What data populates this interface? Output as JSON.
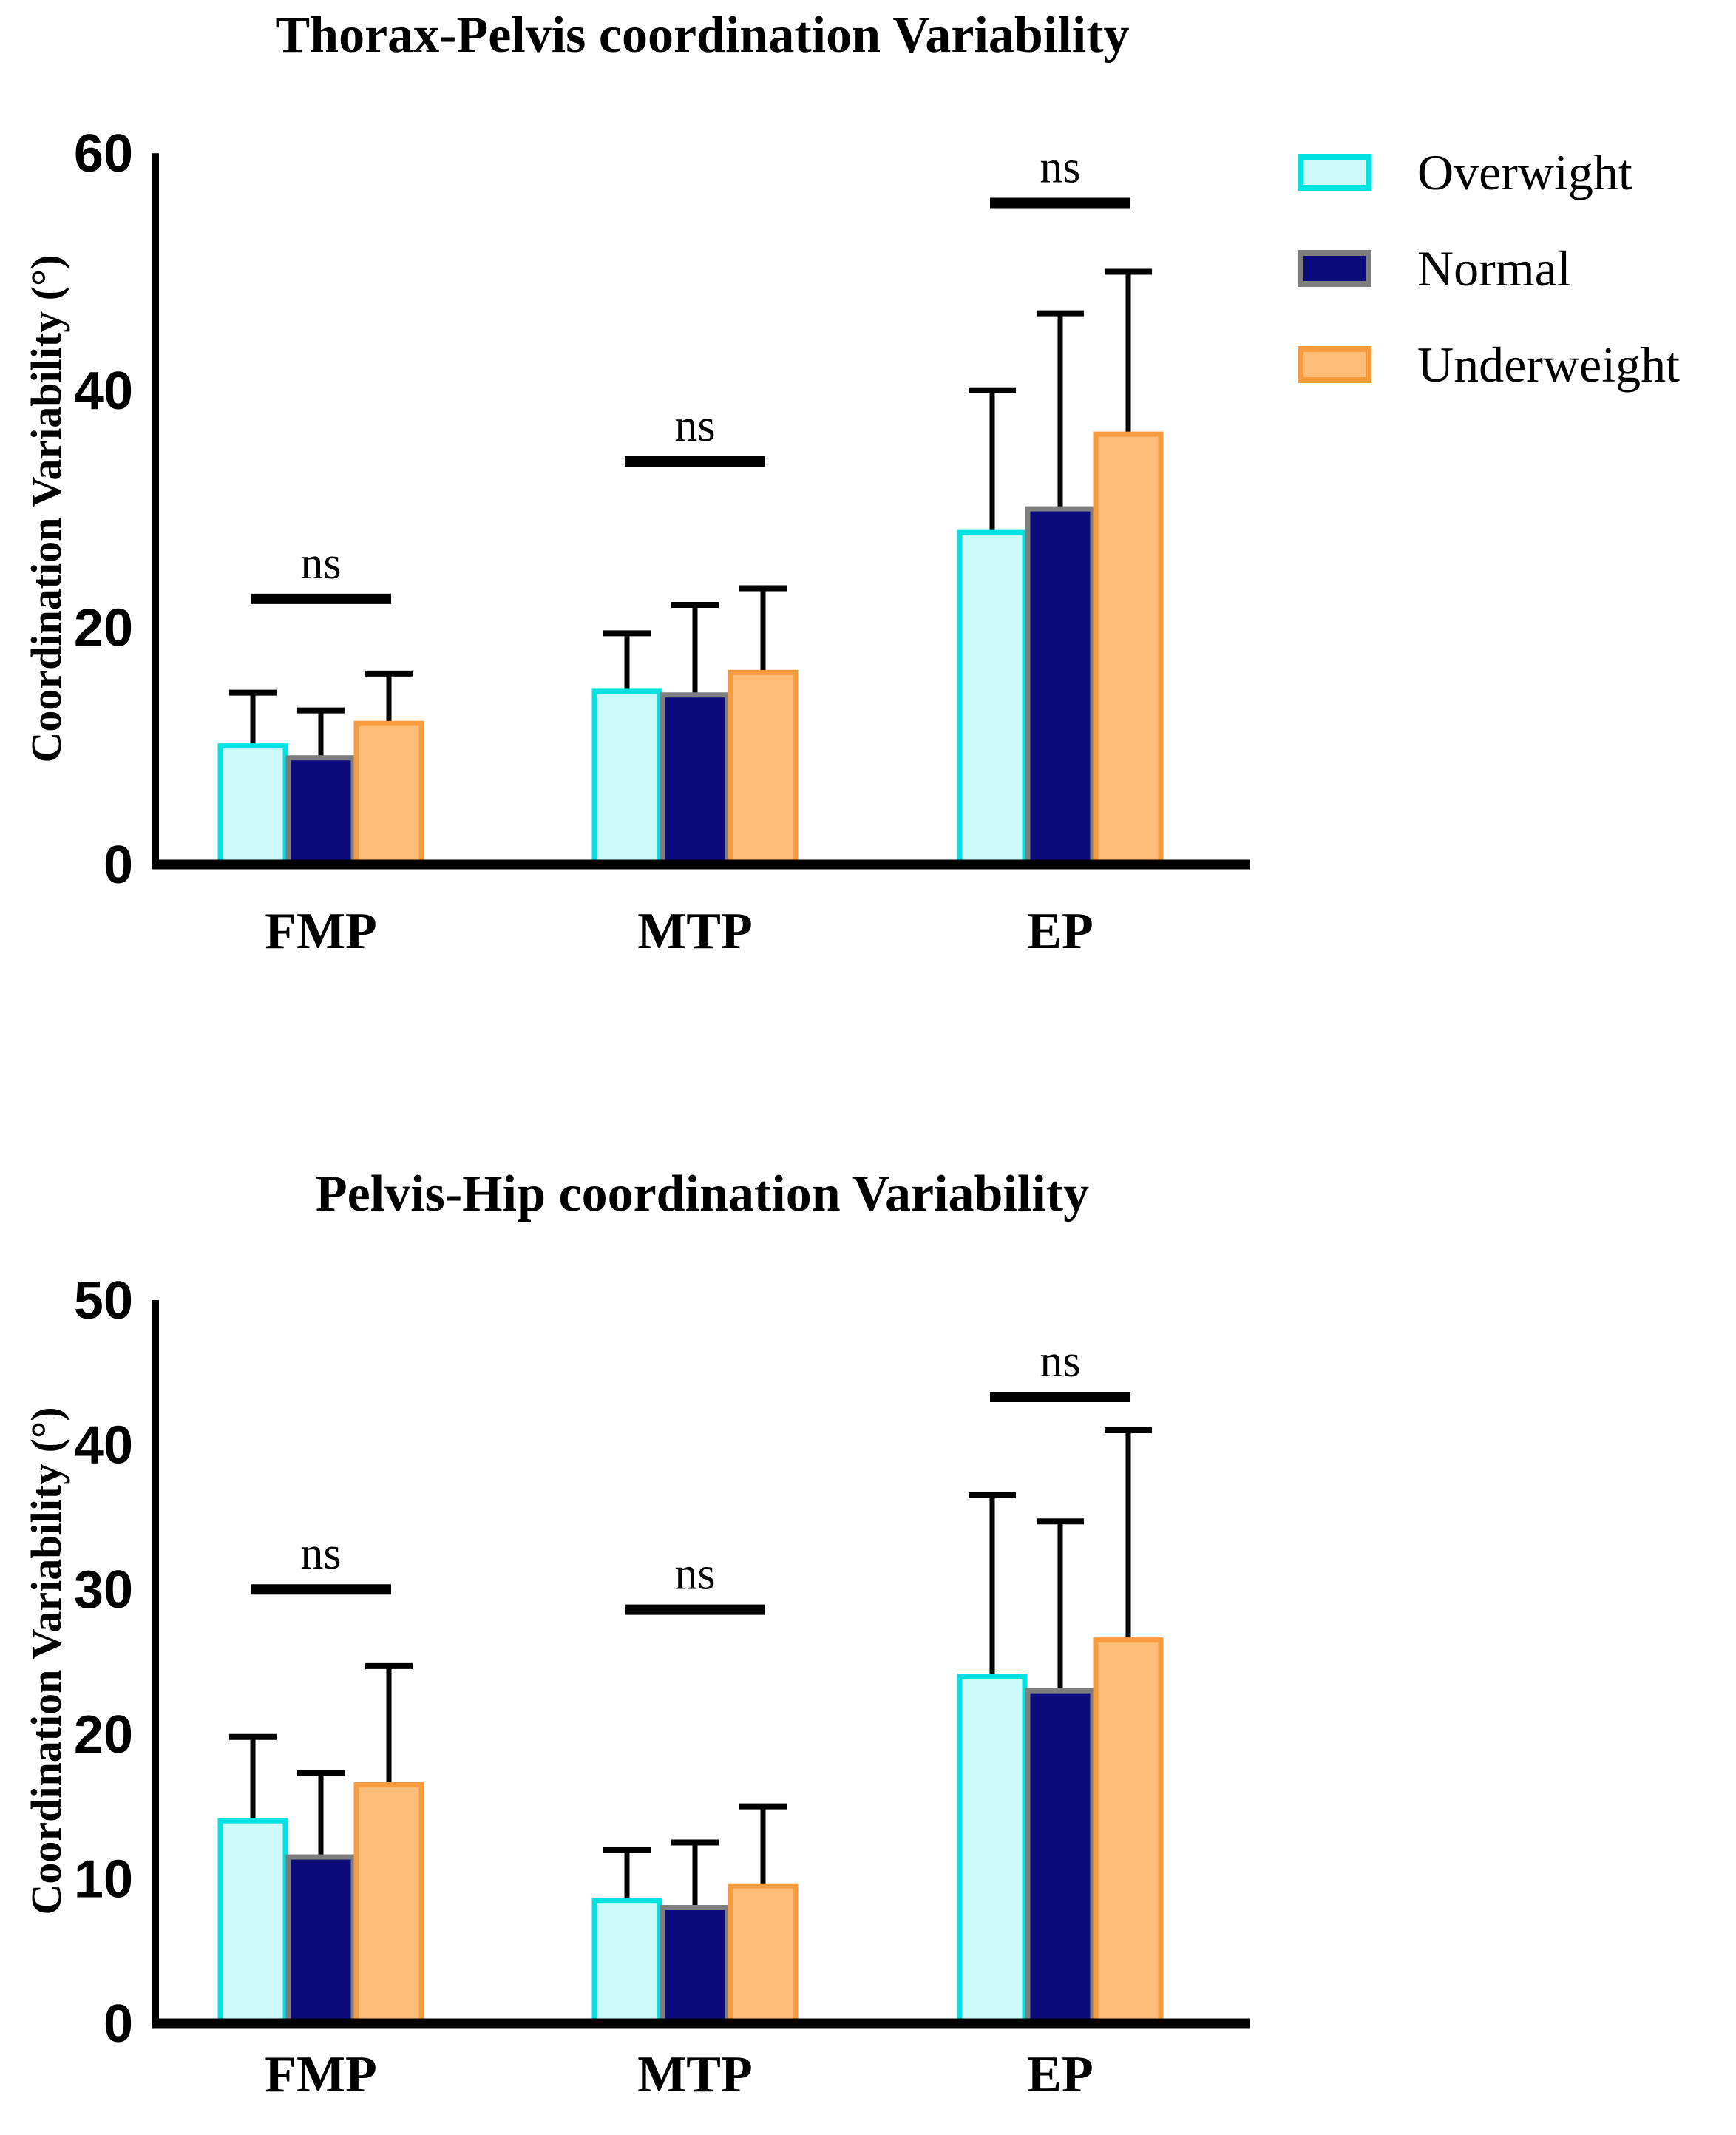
{
  "figure": {
    "background": "#ffffff",
    "text_color": "#000000"
  },
  "legend": {
    "items": [
      {
        "label": "Overwight",
        "fill": "#CCF9F9",
        "border": "#00E1E1"
      },
      {
        "label": "Normal",
        "fill": "#0B0B7B",
        "border": "#7E7E7E"
      },
      {
        "label": "Underweight",
        "fill": "#FBBD78",
        "border": "#F89A3E"
      }
    ]
  },
  "chart_data": [
    {
      "type": "bar",
      "title": "Thorax-Pelvis coordination Variability",
      "ylabel": "Coordination Variability (°)",
      "xlabel": "",
      "categories": [
        "FMP",
        "MTP",
        "EP"
      ],
      "ylim": [
        0,
        60
      ],
      "yticks": [
        0,
        20,
        40,
        60
      ],
      "grid": false,
      "legend_position": "top-right",
      "series": [
        {
          "name": "Overwight",
          "fill": "#CCF9F9",
          "border": "#00E1E1",
          "values": [
            10.0,
            14.6,
            28.0
          ],
          "sd_plus": [
            4.5,
            4.9,
            12.0
          ]
        },
        {
          "name": "Normal",
          "fill": "#0B0B7B",
          "border": "#7E7E7E",
          "values": [
            9.0,
            14.3,
            30.0
          ],
          "sd_plus": [
            4.0,
            7.6,
            16.5
          ]
        },
        {
          "name": "Underweight",
          "fill": "#FBBD78",
          "border": "#F89A3E",
          "values": [
            11.9,
            16.2,
            36.3
          ],
          "sd_plus": [
            4.2,
            7.1,
            13.7
          ]
        }
      ],
      "annotations": [
        {
          "label": "ns",
          "category": "FMP",
          "y": 22.4
        },
        {
          "label": "ns",
          "category": "MTP",
          "y": 34.0
        },
        {
          "label": "ns",
          "category": "EP",
          "y": 55.8
        }
      ]
    },
    {
      "type": "bar",
      "title": "Pelvis-Hip coordination Variability",
      "ylabel": "Coordination Variability (°)",
      "xlabel": "",
      "categories": [
        "FMP",
        "MTP",
        "EP"
      ],
      "ylim": [
        0,
        50
      ],
      "yticks": [
        0,
        10,
        20,
        30,
        40,
        50
      ],
      "grid": false,
      "legend_position": "none",
      "series": [
        {
          "name": "Overwight",
          "fill": "#CCF9F9",
          "border": "#00E1E1",
          "values": [
            14.0,
            8.5,
            24.0
          ],
          "sd_plus": [
            5.8,
            3.5,
            12.5
          ]
        },
        {
          "name": "Normal",
          "fill": "#0B0B7B",
          "border": "#7E7E7E",
          "values": [
            11.5,
            8.0,
            23.0
          ],
          "sd_plus": [
            5.8,
            4.5,
            11.7
          ]
        },
        {
          "name": "Underweight",
          "fill": "#FBBD78",
          "border": "#F89A3E",
          "values": [
            16.5,
            9.5,
            26.5
          ],
          "sd_plus": [
            8.2,
            5.5,
            14.5
          ]
        }
      ],
      "annotations": [
        {
          "label": "ns",
          "category": "FMP",
          "y": 30.0
        },
        {
          "label": "ns",
          "category": "MTP",
          "y": 28.6
        },
        {
          "label": "ns",
          "category": "EP",
          "y": 43.3
        }
      ]
    }
  ]
}
